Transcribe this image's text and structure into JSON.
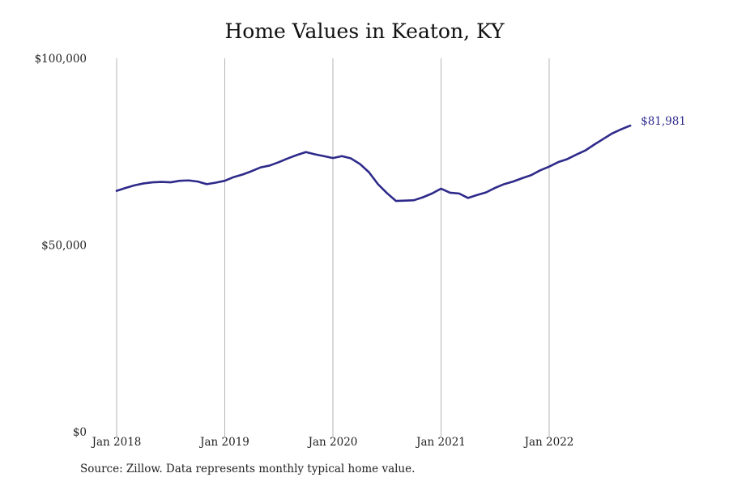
{
  "chart_data": {
    "type": "line",
    "title": "Home Values in Keaton, KY",
    "xlabel": "",
    "ylabel": "",
    "ylim": [
      0,
      100000
    ],
    "xlim": [
      "2018-01",
      "2022-10"
    ],
    "grid": "vertical",
    "y_ticks": [
      {
        "value": 0,
        "label": "$0"
      },
      {
        "value": 50000,
        "label": "$50,000"
      },
      {
        "value": 100000,
        "label": "$100,000"
      }
    ],
    "x_ticks": [
      {
        "value": "2018-01",
        "label": "Jan 2018"
      },
      {
        "value": "2019-01",
        "label": "Jan 2019"
      },
      {
        "value": "2020-01",
        "label": "Jan 2020"
      },
      {
        "value": "2021-01",
        "label": "Jan 2021"
      },
      {
        "value": "2022-01",
        "label": "Jan 2022"
      }
    ],
    "color": "#2e2a8a",
    "series": [
      {
        "x": [
          "2018-01",
          "2018-02",
          "2018-03",
          "2018-04",
          "2018-05",
          "2018-06",
          "2018-07",
          "2018-08",
          "2018-09",
          "2018-10",
          "2018-11",
          "2018-12",
          "2019-01",
          "2019-02",
          "2019-03",
          "2019-04",
          "2019-05",
          "2019-06",
          "2019-07",
          "2019-08",
          "2019-09",
          "2019-10",
          "2019-11",
          "2019-12",
          "2020-01",
          "2020-02",
          "2020-03",
          "2020-04",
          "2020-05",
          "2020-06",
          "2020-07",
          "2020-08",
          "2020-09",
          "2020-10",
          "2020-11",
          "2020-12",
          "2021-01",
          "2021-02",
          "2021-03",
          "2021-04",
          "2021-05",
          "2021-06",
          "2021-07",
          "2021-08",
          "2021-09",
          "2021-10",
          "2021-11",
          "2021-12",
          "2022-01",
          "2022-02",
          "2022-03",
          "2022-04",
          "2022-05",
          "2022-06",
          "2022-07",
          "2022-08",
          "2022-09",
          "2022-10"
        ],
        "y": [
          64500,
          65300,
          66000,
          66500,
          66800,
          66900,
          66800,
          67200,
          67300,
          67000,
          66300,
          66700,
          67200,
          68200,
          68900,
          69800,
          70800,
          71300,
          72200,
          73200,
          74100,
          74900,
          74300,
          73800,
          73300,
          73800,
          73200,
          71700,
          69500,
          66300,
          63900,
          61800,
          61900,
          62000,
          62800,
          63800,
          65100,
          64000,
          63800,
          62600,
          63400,
          64100,
          65300,
          66300,
          67000,
          67900,
          68700,
          70000,
          71000,
          72200,
          73000,
          74200,
          75300,
          76900,
          78400,
          79900,
          81000,
          81981
        ],
        "end_label": "$81,981"
      }
    ]
  },
  "footer": {
    "source": "Source: Zillow. Data represents monthly typical home value."
  }
}
